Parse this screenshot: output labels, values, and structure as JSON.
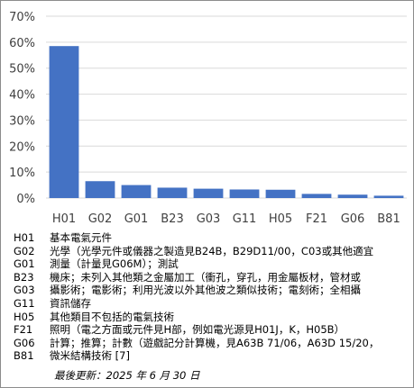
{
  "chart_data": {
    "type": "bar",
    "categories": [
      "H01",
      "G02",
      "G01",
      "B23",
      "G03",
      "G11",
      "H05",
      "F21",
      "G06",
      "B81"
    ],
    "values": [
      58.5,
      6.5,
      5.0,
      4.0,
      3.6,
      3.3,
      3.2,
      1.6,
      1.3,
      0.9
    ],
    "y_ticks": [
      "0%",
      "10%",
      "20%",
      "30%",
      "40%",
      "50%",
      "60%",
      "70%"
    ],
    "ylim": [
      0,
      70
    ],
    "grid": true,
    "bar_color": "#4472c4",
    "grid_color": "#d9d9d9"
  },
  "legend": [
    {
      "code": "H01",
      "desc": "基本電氣元件"
    },
    {
      "code": "G02",
      "desc": "光學（光學元件或儀器之製造見B24B，B29D11/00，C03或其他適宜"
    },
    {
      "code": "G01",
      "desc": "測量（計量見G06M）；測試"
    },
    {
      "code": "B23",
      "desc": "機床；未列入其他類之金屬加工（衝孔，穿孔，用金屬板材，管材或"
    },
    {
      "code": "G03",
      "desc": "攝影術；電影術；利用光波以外其他波之類似技術；電刻術；全相攝"
    },
    {
      "code": "G11",
      "desc": "資訊儲存"
    },
    {
      "code": "H05",
      "desc": "其他類目不包括的電氣技術"
    },
    {
      "code": "F21",
      "desc": "照明（電之方面或元件見H部，例如電光源見H01J，K，H05B）"
    },
    {
      "code": "G06",
      "desc": "計算；推算；計數（遊戲記分計算機，見A63B 71/06，A63D 15/20，"
    },
    {
      "code": "B81",
      "desc": "微米結構技術 [7]"
    }
  ],
  "updated": "最後更新：2025 年 6 月 30 日"
}
